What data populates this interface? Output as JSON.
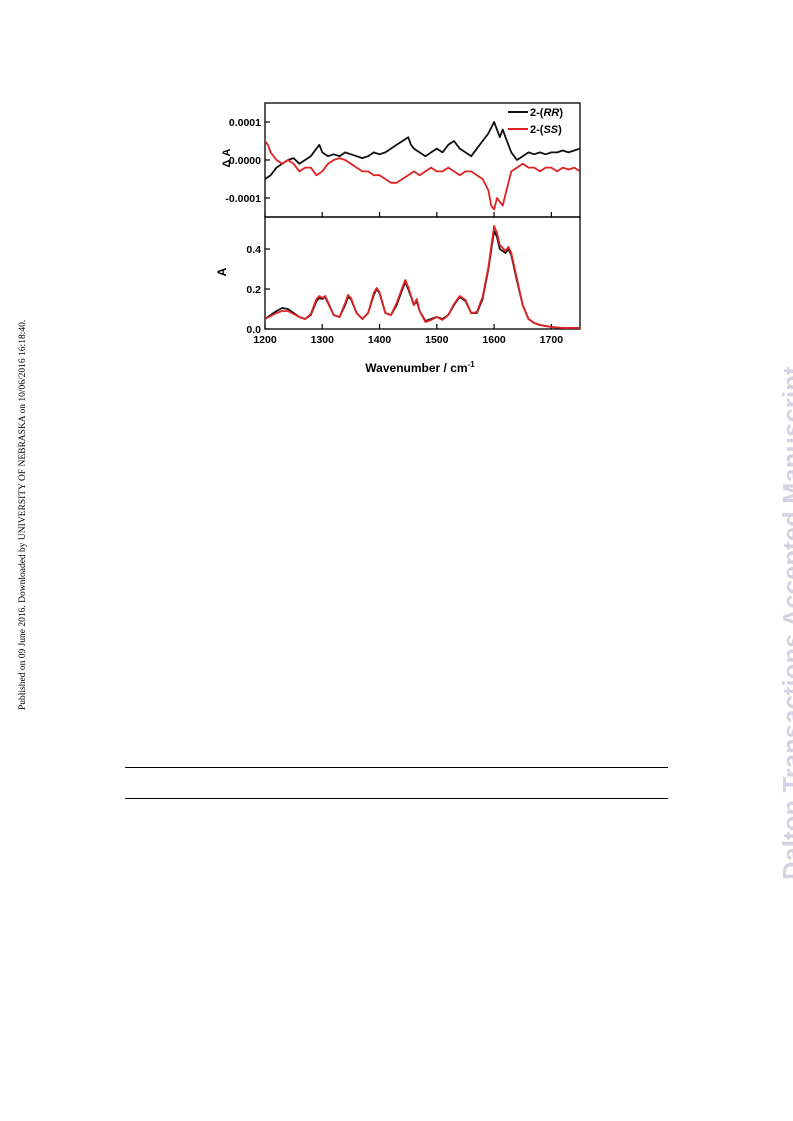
{
  "side_note": "Published on 09 June 2016. Downloaded by UNIVERSITY OF NEBRASKA on 10/06/2016 16:18:40.",
  "watermark": "Dalton Transactions Accepted Manuscript",
  "chart_data": [
    {
      "type": "line",
      "panel": "top",
      "xlabel": "",
      "ylabel": "Δ A",
      "xlim": [
        1200,
        1750
      ],
      "ylim": [
        -0.00015,
        0.00015
      ],
      "yticks": [
        0.0001,
        0.0,
        -0.0001
      ],
      "ytick_labels": [
        "0.0001",
        "0.0000",
        "-0.0001"
      ],
      "legend_position": "top-right",
      "series": [
        {
          "name": "2-(RR)",
          "legend_prefix": "2-(",
          "legend_italic": "RR",
          "legend_suffix": ")",
          "color": "#111111",
          "x": [
            1200,
            1210,
            1220,
            1230,
            1240,
            1250,
            1260,
            1270,
            1280,
            1290,
            1295,
            1300,
            1310,
            1320,
            1330,
            1340,
            1350,
            1360,
            1370,
            1380,
            1390,
            1400,
            1410,
            1420,
            1430,
            1440,
            1450,
            1455,
            1460,
            1470,
            1480,
            1490,
            1500,
            1510,
            1520,
            1530,
            1540,
            1550,
            1560,
            1570,
            1580,
            1590,
            1600,
            1605,
            1610,
            1615,
            1620,
            1625,
            1630,
            1640,
            1650,
            1660,
            1670,
            1680,
            1690,
            1700,
            1710,
            1720,
            1730,
            1740,
            1750
          ],
          "y": [
            -5e-05,
            -4e-05,
            -2e-05,
            -1e-05,
            0.0,
            5e-06,
            -1e-05,
            0.0,
            1e-05,
            3e-05,
            4e-05,
            2e-05,
            1e-05,
            1.5e-05,
            1e-05,
            2e-05,
            1.5e-05,
            1e-05,
            5e-06,
            1e-05,
            2e-05,
            1.5e-05,
            2e-05,
            3e-05,
            4e-05,
            5e-05,
            6e-05,
            4e-05,
            3e-05,
            2e-05,
            1e-05,
            2e-05,
            3e-05,
            2e-05,
            4e-05,
            5e-05,
            3e-05,
            2e-05,
            1e-05,
            3e-05,
            5e-05,
            7e-05,
            0.0001,
            8e-05,
            6e-05,
            8e-05,
            6e-05,
            4e-05,
            2e-05,
            0.0,
            1e-05,
            2e-05,
            1.5e-05,
            2e-05,
            1.5e-05,
            2e-05,
            2e-05,
            2.5e-05,
            2e-05,
            2.5e-05,
            3e-05
          ]
        },
        {
          "name": "2-(SS)",
          "legend_prefix": "2-(",
          "legend_italic": "SS",
          "legend_suffix": ")",
          "color": "#e12222",
          "x": [
            1200,
            1205,
            1210,
            1220,
            1230,
            1240,
            1250,
            1260,
            1270,
            1280,
            1290,
            1300,
            1310,
            1320,
            1330,
            1340,
            1350,
            1360,
            1370,
            1380,
            1390,
            1400,
            1410,
            1420,
            1430,
            1440,
            1450,
            1460,
            1470,
            1480,
            1490,
            1500,
            1510,
            1520,
            1530,
            1540,
            1550,
            1560,
            1570,
            1580,
            1590,
            1595,
            1600,
            1605,
            1610,
            1615,
            1620,
            1625,
            1630,
            1640,
            1650,
            1660,
            1670,
            1680,
            1690,
            1700,
            1710,
            1720,
            1730,
            1740,
            1750
          ],
          "y": [
            5e-05,
            4e-05,
            2e-05,
            0.0,
            -1e-05,
            0.0,
            -1e-05,
            -3e-05,
            -2e-05,
            -2e-05,
            -4e-05,
            -3e-05,
            -1e-05,
            0.0,
            5e-06,
            0.0,
            -1e-05,
            -2e-05,
            -3e-05,
            -3e-05,
            -4e-05,
            -4e-05,
            -5e-05,
            -6e-05,
            -6e-05,
            -5e-05,
            -4e-05,
            -3e-05,
            -4e-05,
            -3e-05,
            -2e-05,
            -3e-05,
            -3e-05,
            -2e-05,
            -3e-05,
            -4e-05,
            -3e-05,
            -3e-05,
            -4e-05,
            -5e-05,
            -8e-05,
            -0.00012,
            -0.00013,
            -0.0001,
            -0.00011,
            -0.00012,
            -9e-05,
            -6e-05,
            -3e-05,
            -2e-05,
            -1e-05,
            -2e-05,
            -2e-05,
            -3e-05,
            -2e-05,
            -2e-05,
            -3e-05,
            -2e-05,
            -2.5e-05,
            -2e-05,
            -3e-05
          ]
        }
      ]
    },
    {
      "type": "line",
      "panel": "bottom",
      "xlabel": "Wavenumber / cm",
      "xlabel_superscript": "-1",
      "ylabel": "A",
      "xlim": [
        1200,
        1750
      ],
      "ylim": [
        0.0,
        0.56
      ],
      "xticks": [
        1200,
        1300,
        1400,
        1500,
        1600,
        1700
      ],
      "xtick_labels": [
        "1200",
        "1300",
        "1400",
        "1500",
        "1600",
        "1700"
      ],
      "yticks": [
        0.0,
        0.2,
        0.4
      ],
      "ytick_labels": [
        "0.0",
        "0.2",
        "0.4"
      ],
      "series": [
        {
          "color": "#111111",
          "x": [
            1200,
            1210,
            1220,
            1230,
            1240,
            1250,
            1260,
            1270,
            1280,
            1290,
            1295,
            1300,
            1305,
            1310,
            1320,
            1330,
            1340,
            1345,
            1350,
            1360,
            1370,
            1380,
            1390,
            1395,
            1400,
            1410,
            1420,
            1430,
            1440,
            1445,
            1450,
            1460,
            1465,
            1470,
            1480,
            1490,
            1500,
            1510,
            1520,
            1530,
            1540,
            1550,
            1560,
            1570,
            1580,
            1590,
            1600,
            1605,
            1610,
            1620,
            1625,
            1630,
            1640,
            1650,
            1660,
            1670,
            1680,
            1690,
            1700,
            1720,
            1750
          ],
          "y": [
            0.05,
            0.07,
            0.09,
            0.105,
            0.1,
            0.08,
            0.06,
            0.05,
            0.07,
            0.14,
            0.155,
            0.15,
            0.16,
            0.13,
            0.07,
            0.06,
            0.12,
            0.16,
            0.15,
            0.08,
            0.05,
            0.08,
            0.17,
            0.2,
            0.18,
            0.08,
            0.07,
            0.12,
            0.2,
            0.235,
            0.2,
            0.12,
            0.14,
            0.09,
            0.04,
            0.05,
            0.06,
            0.05,
            0.07,
            0.12,
            0.16,
            0.14,
            0.08,
            0.08,
            0.15,
            0.3,
            0.49,
            0.46,
            0.4,
            0.38,
            0.4,
            0.37,
            0.24,
            0.12,
            0.05,
            0.03,
            0.02,
            0.015,
            0.01,
            0.005,
            0.005
          ]
        },
        {
          "color": "#e12222",
          "x": [
            1200,
            1210,
            1220,
            1230,
            1240,
            1250,
            1260,
            1270,
            1280,
            1290,
            1295,
            1300,
            1305,
            1310,
            1320,
            1330,
            1340,
            1345,
            1350,
            1360,
            1370,
            1380,
            1390,
            1395,
            1400,
            1410,
            1420,
            1430,
            1440,
            1445,
            1450,
            1460,
            1465,
            1470,
            1480,
            1490,
            1500,
            1510,
            1520,
            1530,
            1540,
            1550,
            1560,
            1570,
            1580,
            1590,
            1600,
            1605,
            1610,
            1620,
            1625,
            1630,
            1640,
            1650,
            1660,
            1670,
            1680,
            1690,
            1700,
            1720,
            1750
          ],
          "y": [
            0.05,
            0.065,
            0.08,
            0.09,
            0.09,
            0.075,
            0.06,
            0.05,
            0.075,
            0.15,
            0.165,
            0.155,
            0.165,
            0.135,
            0.07,
            0.06,
            0.13,
            0.17,
            0.155,
            0.08,
            0.05,
            0.08,
            0.18,
            0.205,
            0.185,
            0.08,
            0.07,
            0.13,
            0.21,
            0.245,
            0.21,
            0.12,
            0.15,
            0.09,
            0.035,
            0.045,
            0.06,
            0.045,
            0.07,
            0.125,
            0.165,
            0.145,
            0.08,
            0.085,
            0.16,
            0.31,
            0.515,
            0.48,
            0.42,
            0.39,
            0.41,
            0.38,
            0.25,
            0.12,
            0.05,
            0.03,
            0.02,
            0.015,
            0.01,
            0.005,
            0.005
          ]
        }
      ]
    }
  ]
}
